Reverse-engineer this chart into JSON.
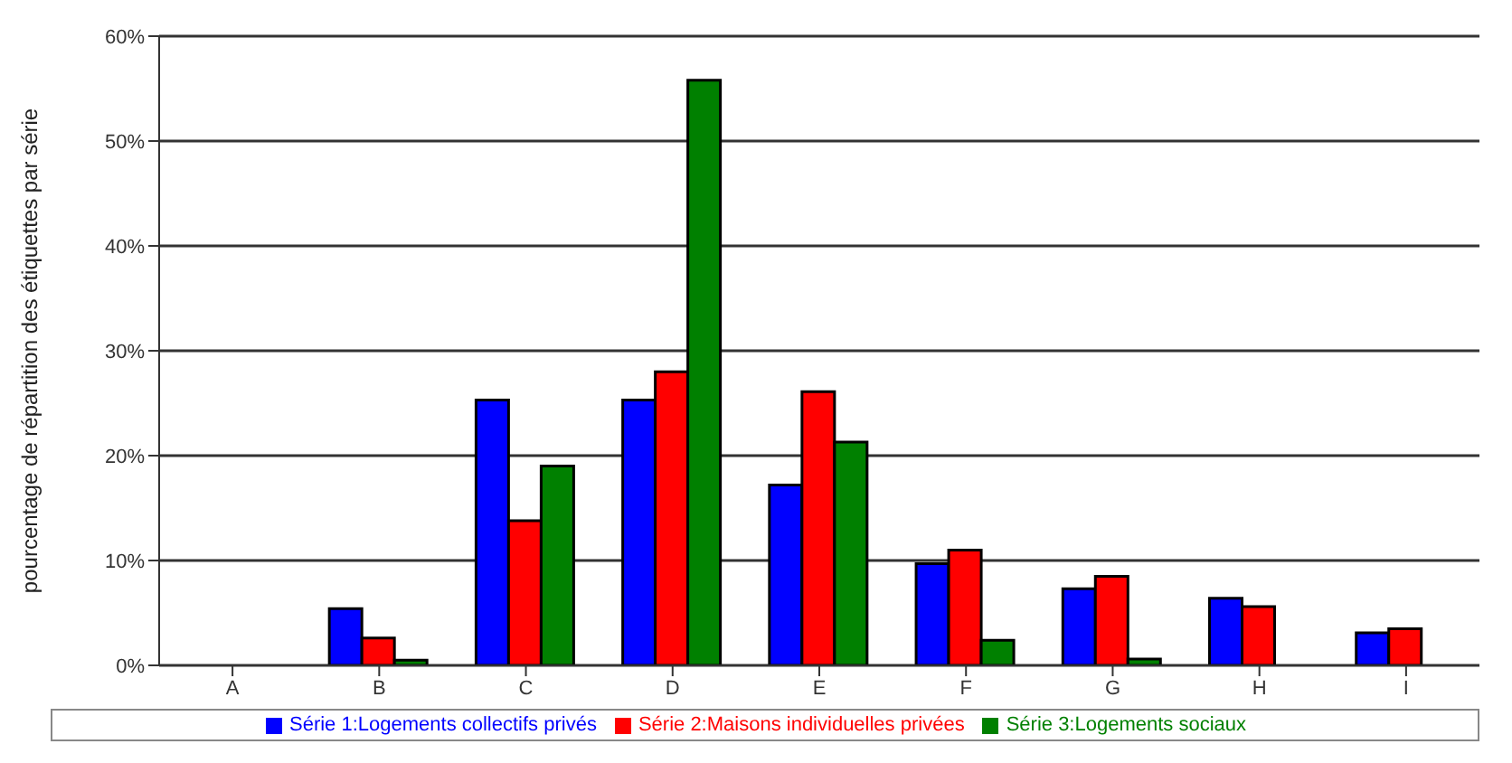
{
  "chart_data": {
    "type": "bar",
    "ylabel": "pourcentage de répartition des étiquettes par série",
    "categories": [
      "A",
      "B",
      "C",
      "D",
      "E",
      "F",
      "G",
      "H",
      "I"
    ],
    "series": [
      {
        "name": "Série 1:Logements collectifs privés",
        "color": "#0000ff",
        "values": [
          0,
          5.4,
          25.3,
          25.3,
          17.2,
          9.7,
          7.3,
          6.4,
          3.1
        ]
      },
      {
        "name": "Série 2:Maisons individuelles privées",
        "color": "#ff0000",
        "values": [
          0,
          2.6,
          13.8,
          28.0,
          26.1,
          11.0,
          8.5,
          5.6,
          3.5
        ]
      },
      {
        "name": "Série 3:Logements sociaux",
        "color": "#008000",
        "values": [
          0,
          0.5,
          19.0,
          55.8,
          21.3,
          2.4,
          0.6,
          0,
          0
        ]
      }
    ],
    "ylim": [
      0,
      60
    ],
    "yticks": [
      {
        "value": 0,
        "label": "0%"
      },
      {
        "value": 10,
        "label": "10%"
      },
      {
        "value": 20,
        "label": "20%"
      },
      {
        "value": 30,
        "label": "30%"
      },
      {
        "value": 40,
        "label": "40%"
      },
      {
        "value": 50,
        "label": "50%"
      },
      {
        "value": 60,
        "label": "60%"
      }
    ],
    "grid": "y",
    "legend": "bottom"
  }
}
